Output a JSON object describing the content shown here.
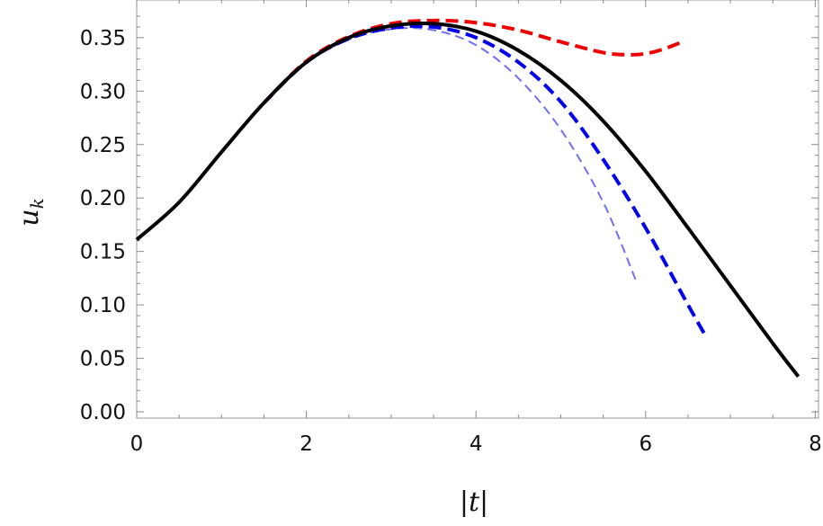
{
  "chart_data": {
    "type": "line",
    "title": "",
    "xlabel": "|t|",
    "ylabel": "u_k",
    "ylabel_main": "u",
    "ylabel_sub": "k",
    "xlim": [
      0,
      8
    ],
    "ylim": [
      0,
      0.375
    ],
    "grid": false,
    "x_ticks": [
      "0",
      "2",
      "4",
      "6",
      "8"
    ],
    "y_ticks": [
      "0.00",
      "0.05",
      "0.10",
      "0.15",
      "0.20",
      "0.25",
      "0.30",
      "0.35"
    ],
    "series": [
      {
        "color": "#000000",
        "style": "solid",
        "x": [
          0,
          0.5,
          1,
          1.5,
          2,
          2.5,
          3,
          3.5,
          4,
          4.5,
          5,
          5.5,
          6,
          6.5,
          7,
          7.5,
          7.8
        ],
        "y": [
          0.161,
          0.196,
          0.243,
          0.289,
          0.327,
          0.35,
          0.361,
          0.363,
          0.356,
          0.338,
          0.31,
          0.272,
          0.225,
          0.172,
          0.118,
          0.064,
          0.033
        ]
      },
      {
        "color": "#ee0000",
        "style": "dashed-thick",
        "x": [
          1.5,
          2,
          2.5,
          3,
          3.5,
          4,
          4.5,
          5,
          5.5,
          5.8,
          6,
          6.2,
          6.4
        ],
        "y": [
          0.289,
          0.328,
          0.351,
          0.363,
          0.366,
          0.364,
          0.357,
          0.346,
          0.336,
          0.334,
          0.335,
          0.339,
          0.345
        ]
      },
      {
        "color": "#0000ee",
        "style": "dashed-thick",
        "x": [
          1.5,
          2,
          2.5,
          3,
          3.5,
          4,
          4.5,
          5,
          5.5,
          6,
          6.5,
          6.7
        ],
        "y": [
          0.289,
          0.327,
          0.349,
          0.359,
          0.36,
          0.35,
          0.327,
          0.29,
          0.236,
          0.172,
          0.1,
          0.072
        ]
      },
      {
        "color": "#6f6ff0",
        "style": "dashed-thin",
        "x": [
          1.5,
          2,
          2.5,
          3,
          3.5,
          4,
          4.5,
          5,
          5.5,
          5.9
        ],
        "y": [
          0.289,
          0.327,
          0.348,
          0.358,
          0.357,
          0.343,
          0.312,
          0.264,
          0.196,
          0.12
        ]
      }
    ]
  }
}
